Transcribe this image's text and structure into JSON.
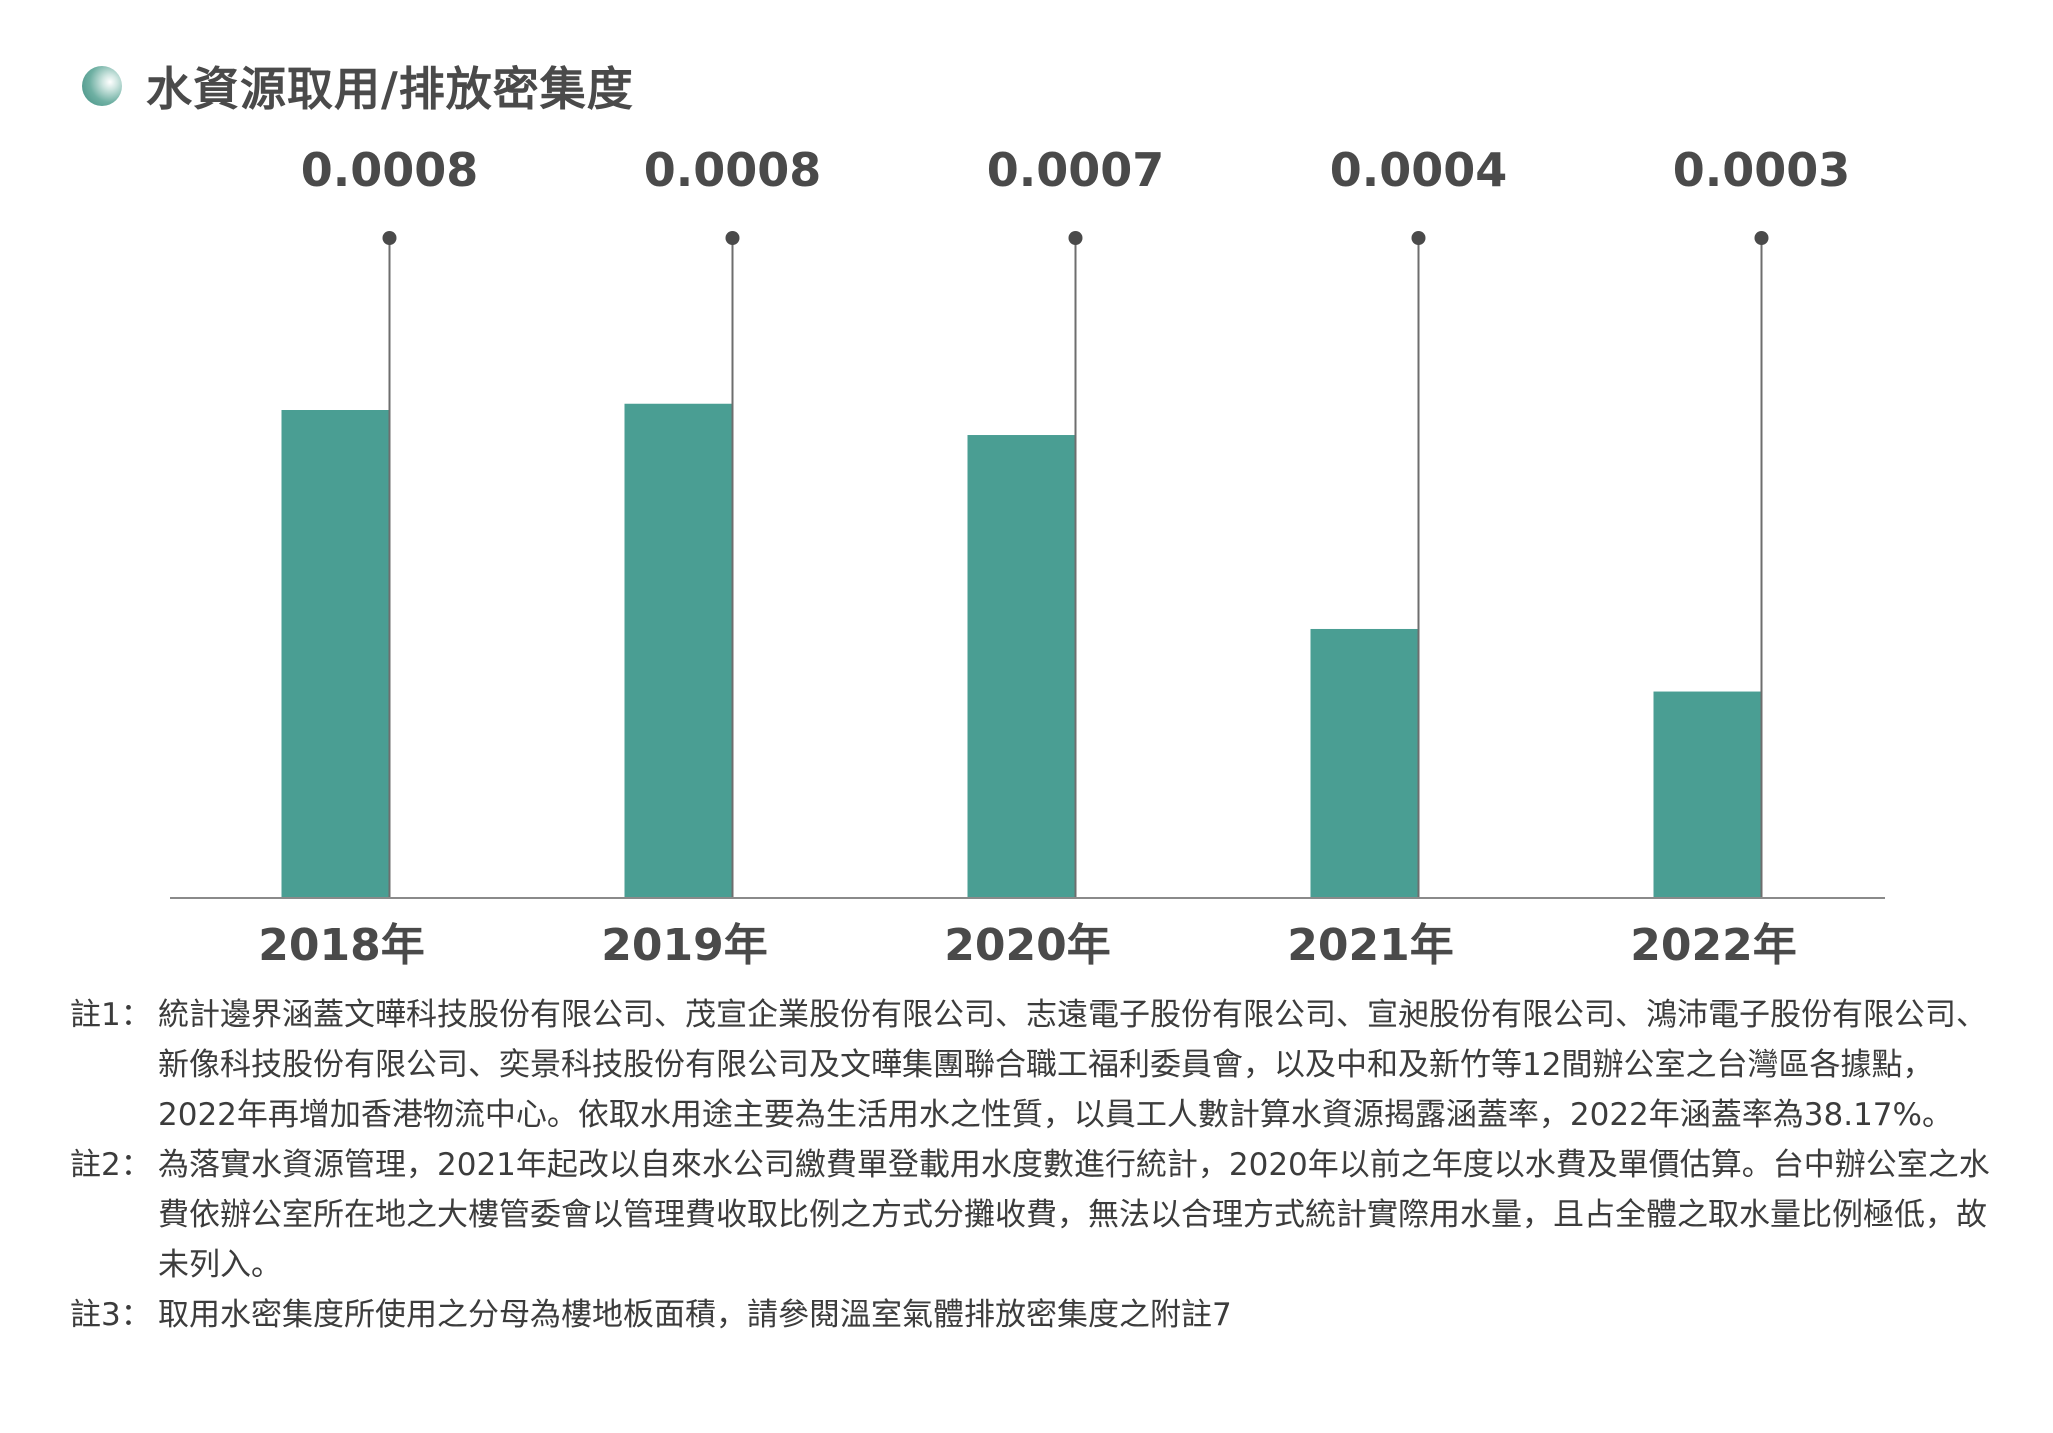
{
  "header": {
    "title": "水資源取用/排放密集度"
  },
  "chart_data": {
    "type": "bar",
    "title": "水資源取用/排放密集度",
    "categories": [
      "2018年",
      "2019年",
      "2020年",
      "2021年",
      "2022年"
    ],
    "values": [
      0.00078,
      0.00079,
      0.00074,
      0.00043,
      0.00033
    ],
    "value_labels": [
      "0.0008",
      "0.0008",
      "0.0007",
      "0.0004",
      "0.0003"
    ],
    "ylim": [
      0,
      0.00078
    ],
    "grid": false,
    "bar_color": "#4a9e93",
    "leader_line_color": "#6e6e6e"
  },
  "notes": [
    {
      "label": "註1：",
      "text": "統計邊界涵蓋文曄科技股份有限公司、茂宣企業股份有限公司、志遠電子股份有限公司、宣昶股份有限公司、鴻沛電子股份有限公司、新像科技股份有限公司、奕景科技股份有限公司及文曄集團聯合職工福利委員會，以及中和及新竹等12間辦公室之台灣區各據點，2022年再增加香港物流中心。依取水用途主要為生活用水之性質，以員工人數計算水資源揭露涵蓋率，2022年涵蓋率為38.17%。"
    },
    {
      "label": "註2：",
      "text": "為落實水資源管理，2021年起改以自來水公司繳費單登載用水度數進行統計，2020年以前之年度以水費及單價估算。台中辦公室之水費依辦公室所在地之大樓管委會以管理費收取比例之方式分攤收費，無法以合理方式統計實際用水量，且占全體之取水量比例極低，故未列入。"
    },
    {
      "label": "註3：",
      "text": "取用水密集度所使用之分母為樓地板面積，請參閱溫室氣體排放密集度之附註7"
    }
  ]
}
